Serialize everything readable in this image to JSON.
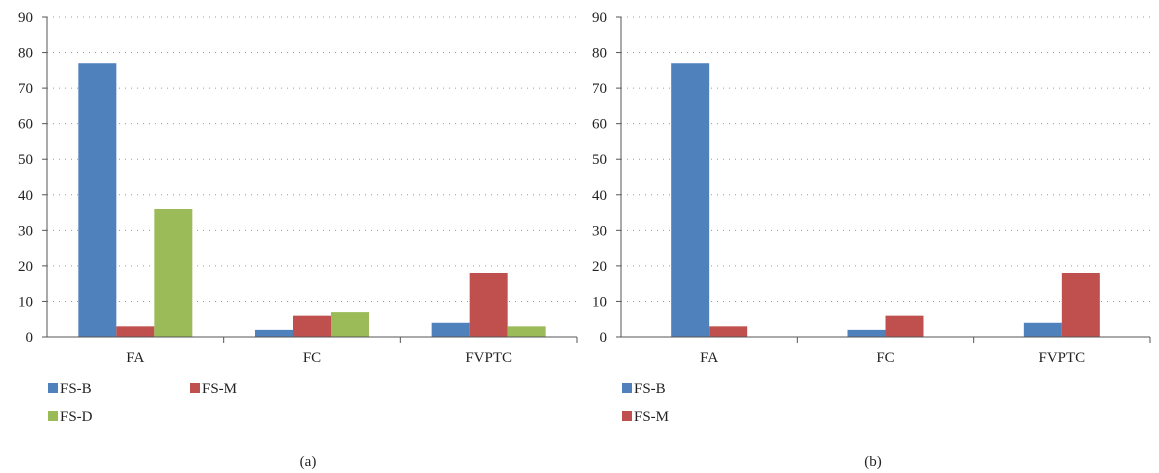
{
  "colors": {
    "FS-B": "#4f81bd",
    "FS-M": "#c0504d",
    "FS-D": "#9bbb59",
    "grid": "#9a9a9a",
    "axis": "#555555"
  },
  "chart_data": [
    {
      "type": "bar",
      "panel_label": "(a)",
      "categories": [
        "FA",
        "FC",
        "FVPTC"
      ],
      "series": [
        {
          "name": "FS-B",
          "values": [
            77,
            2,
            4
          ]
        },
        {
          "name": "FS-M",
          "values": [
            3,
            6,
            18
          ]
        },
        {
          "name": "FS-D",
          "values": [
            36,
            7,
            3
          ]
        }
      ],
      "ylim": [
        0,
        90
      ],
      "yticks": [
        0,
        10,
        20,
        30,
        40,
        50,
        60,
        70,
        80,
        90
      ],
      "grid": true,
      "grid_style": "dotted",
      "legend_position": "bottom-left",
      "legend_order": [
        "FS-B",
        "FS-D",
        "FS-M"
      ],
      "title": "",
      "xlabel": "",
      "ylabel": ""
    },
    {
      "type": "bar",
      "panel_label": "(b)",
      "categories": [
        "FA",
        "FC",
        "FVPTC"
      ],
      "series": [
        {
          "name": "FS-B",
          "values": [
            77,
            2,
            4
          ]
        },
        {
          "name": "FS-M",
          "values": [
            3,
            6,
            18
          ]
        }
      ],
      "ylim": [
        0,
        90
      ],
      "yticks": [
        0,
        10,
        20,
        30,
        40,
        50,
        60,
        70,
        80,
        90
      ],
      "grid": true,
      "grid_style": "dotted",
      "legend_position": "bottom-left",
      "legend_order": [
        "FS-B",
        "FS-M"
      ],
      "title": "",
      "xlabel": "",
      "ylabel": ""
    }
  ]
}
